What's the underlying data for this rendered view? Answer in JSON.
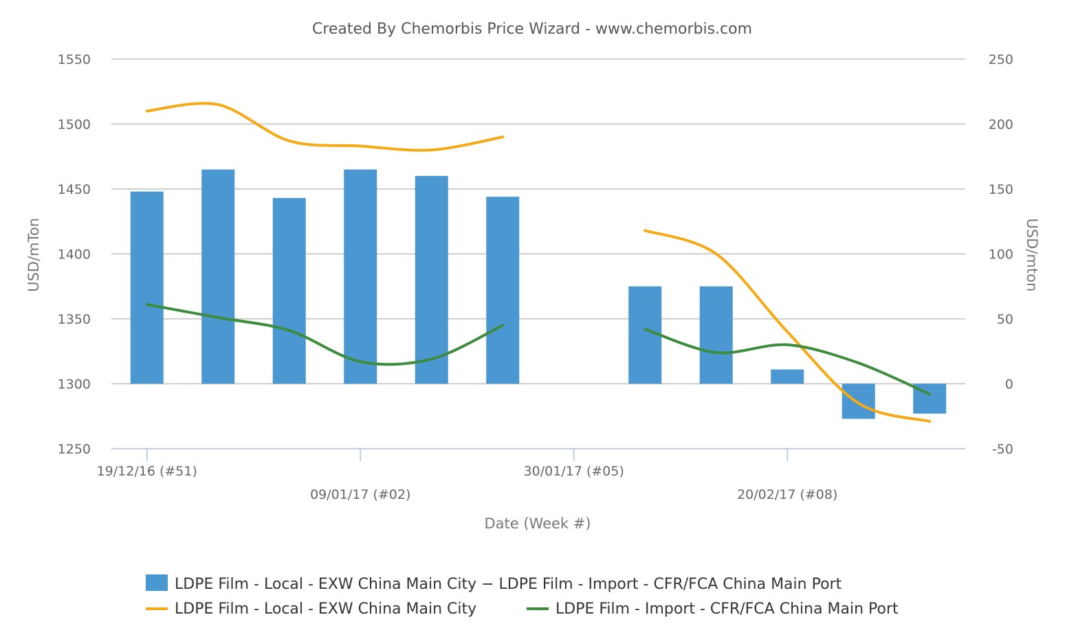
{
  "chart_data": {
    "type": "bar+line",
    "title": "Created By Chemorbis Price Wizard - www.chemorbis.com",
    "xlabel": "Date (Week #)",
    "ylabel_left": "USD/mTon",
    "ylabel_right": "USD/mton",
    "ylim_left": [
      1250,
      1550
    ],
    "ylim_right": [
      -50,
      250
    ],
    "yticks_left": [
      "1550",
      "1500",
      "1450",
      "1400",
      "1350",
      "1300",
      "1250"
    ],
    "yticks_right": [
      "250",
      "200",
      "150",
      "100",
      "50",
      "0",
      "-50"
    ],
    "x_index": [
      0,
      1,
      2,
      3,
      4,
      5,
      6,
      7,
      8,
      9,
      10,
      11
    ],
    "xtick_labels": [
      {
        "index": 0,
        "label": "19/12/16 (#51)",
        "row": 1
      },
      {
        "index": 3,
        "label": "09/01/17 (#02)",
        "row": 2
      },
      {
        "index": 6,
        "label": "30/01/17 (#05)",
        "row": 1
      },
      {
        "index": 9,
        "label": "20/02/17 (#08)",
        "row": 2
      }
    ],
    "series": [
      {
        "name": "LDPE Film - Local - EXW China Main City − LDPE Film - Import - CFR/FCA China Main Port",
        "type": "bar",
        "axis": "right",
        "color": "#4a97d1",
        "values": [
          148,
          165,
          143,
          165,
          160,
          144,
          null,
          75,
          75,
          11,
          -27,
          -23
        ]
      },
      {
        "name": "LDPE Film - Local - EXW China Main City",
        "type": "line",
        "axis": "left",
        "color": "#f5a914",
        "values": [
          1510,
          1515,
          1487,
          1483,
          1480,
          1490,
          null,
          1418,
          1400,
          1340,
          1285,
          1271
        ]
      },
      {
        "name": "LDPE Film - Import - CFR/FCA China Main Port",
        "type": "line",
        "axis": "left",
        "color": "#3d8c3d",
        "values": [
          1361,
          1351,
          1341,
          1317,
          1319,
          1345,
          null,
          1342,
          1324,
          1330,
          1316,
          1292
        ]
      }
    ],
    "legend": [
      "LDPE Film - Local - EXW China Main City − LDPE Film - Import - CFR/FCA China Main Port",
      "LDPE Film - Local - EXW China Main City",
      "LDPE Film - Import - CFR/FCA China Main Port"
    ],
    "legend_position": "bottom"
  }
}
